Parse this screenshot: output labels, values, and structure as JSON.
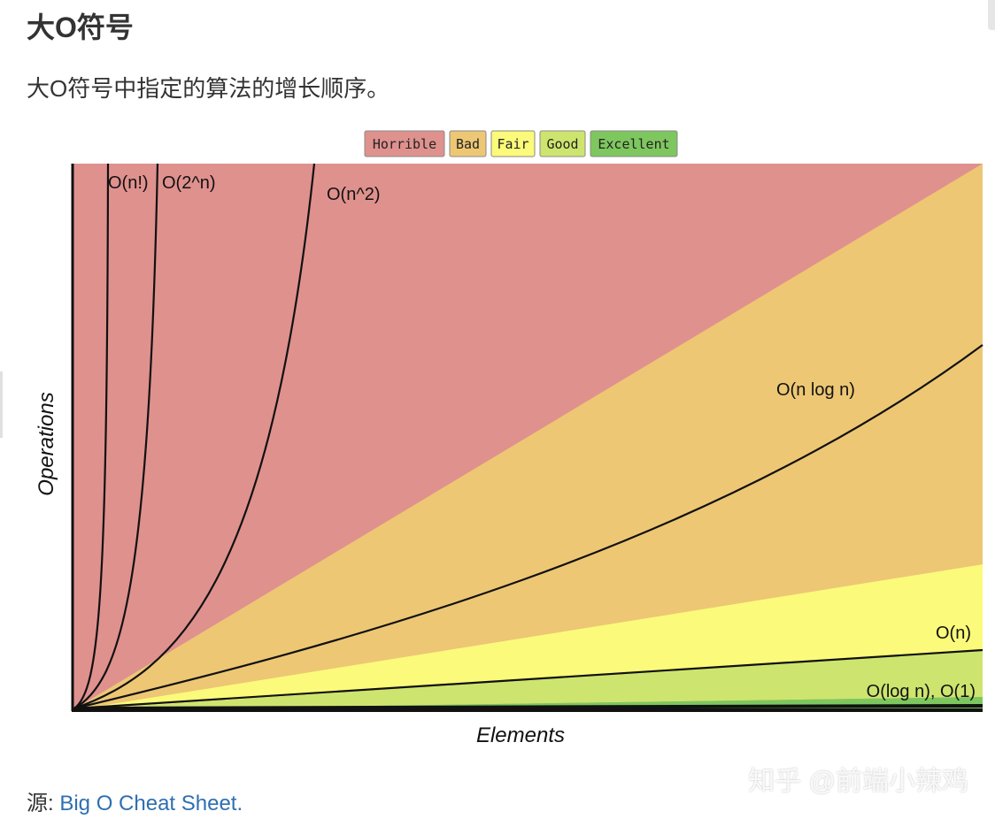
{
  "heading": "大O符号",
  "description": "大O符号中指定的算法的增长顺序。",
  "footer": {
    "prefix": "源: ",
    "link_text": "Big O Cheat Sheet."
  },
  "watermark": "知乎 @前端小辣鸡",
  "chart_data": {
    "type": "line",
    "xlabel": "Elements",
    "ylabel": "Operations",
    "legend_position": "top-center",
    "legend": [
      {
        "label": "Horrible",
        "color": "#df918e"
      },
      {
        "label": "Bad",
        "color": "#edc774"
      },
      {
        "label": "Fair",
        "color": "#fbfa7a"
      },
      {
        "label": "Good",
        "color": "#cde56e"
      },
      {
        "label": "Excellent",
        "color": "#7ec75f"
      }
    ],
    "series": [
      {
        "name": "O(n!)"
      },
      {
        "name": "O(2^n)"
      },
      {
        "name": "O(n^2)"
      },
      {
        "name": "O(n log n)"
      },
      {
        "name": "O(n)"
      },
      {
        "name": "O(log n), O(1)"
      }
    ]
  }
}
